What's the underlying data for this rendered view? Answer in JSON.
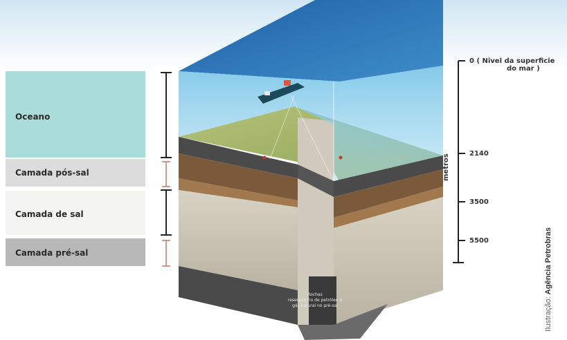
{
  "layers": [
    {
      "label": "Oceano",
      "color": "#aadcd9"
    },
    {
      "label": "Camada pós-sal",
      "color": "#dcdcdc"
    },
    {
      "label": "Camada de sal",
      "color": "#f4f4f2"
    },
    {
      "label": "Camada pré-sal",
      "color": "#b8b8b8"
    }
  ],
  "depth_axis": {
    "unit_label": "metros",
    "ticks": [
      {
        "value": "0 ( Nivel da superficie",
        "value_line2": "do mar )"
      },
      {
        "value": "2140"
      },
      {
        "value": "3500"
      },
      {
        "value": "5500"
      }
    ]
  },
  "drill_label": "Rochas reservatório de petróleo e gás natural no pré-sal",
  "credit": {
    "prefix": "Ilustração: ",
    "source": "Agência Petrobras"
  }
}
